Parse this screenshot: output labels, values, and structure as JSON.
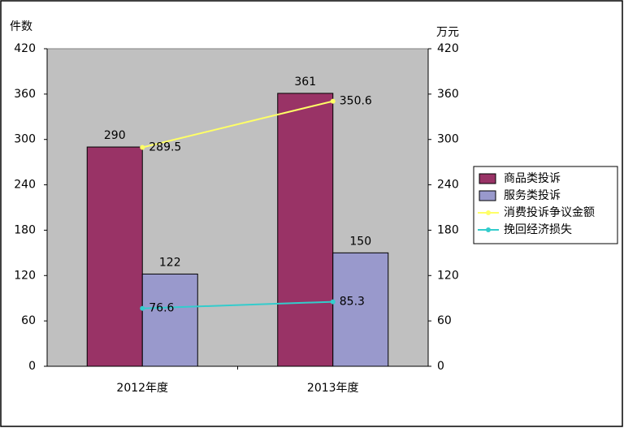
{
  "chart_data": {
    "type": "bar",
    "y_label": "件数",
    "y2_label": "万元",
    "categories": [
      "2012年度",
      "2013年度"
    ],
    "series": [
      {
        "name": "商品类投诉",
        "type": "bar",
        "color": "#993366",
        "values": [
          290,
          361
        ]
      },
      {
        "name": "服务类投诉",
        "type": "bar",
        "color": "#9999cc",
        "values": [
          122,
          150
        ]
      },
      {
        "name": "消费投诉争议金额",
        "type": "line",
        "axis": "y2",
        "color": "#ffff66",
        "values": [
          289.5,
          350.6
        ]
      },
      {
        "name": "挽回经济损失",
        "type": "line",
        "axis": "y2",
        "color": "#33cccc",
        "values": [
          76.6,
          85.3
        ]
      }
    ],
    "ylim": [
      0,
      420
    ],
    "yticks": [
      0,
      60,
      120,
      180,
      240,
      300,
      360,
      420
    ],
    "y2lim": [
      0,
      420
    ],
    "y2ticks": [
      0,
      60,
      120,
      180,
      240,
      300,
      360,
      420
    ],
    "grid": false,
    "legend": "right",
    "plot_background": "#c0c0c0"
  }
}
